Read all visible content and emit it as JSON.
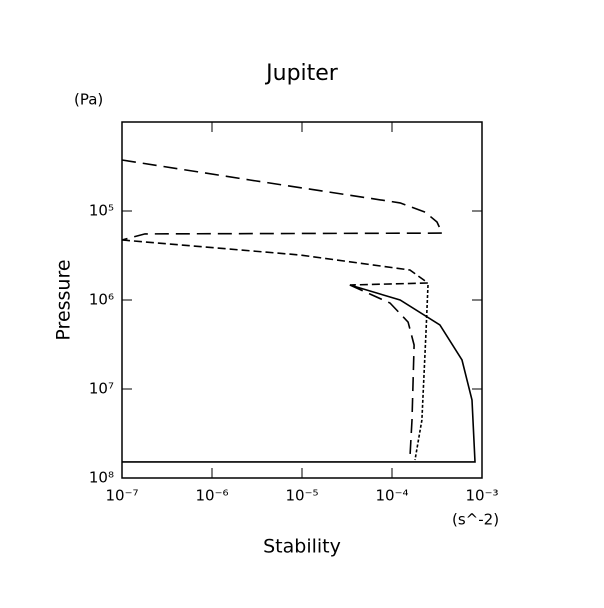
{
  "chart_data": {
    "type": "line",
    "title": "Jupiter",
    "x_label": "Stability",
    "x_unit": "(s^-2)",
    "y_label": "Pressure",
    "y_unit": "(Pa)",
    "xscale": "log",
    "yscale": "log",
    "xlim": [
      1e-07,
      0.001
    ],
    "ylim": [
      100000000.0,
      10000.0
    ],
    "xticks": [
      {
        "value": 1e-07,
        "label": "10⁻⁷"
      },
      {
        "value": 1e-06,
        "label": "10⁻⁶"
      },
      {
        "value": 1e-05,
        "label": "10⁻⁵"
      },
      {
        "value": 0.0001,
        "label": "10⁻⁴"
      },
      {
        "value": 0.001,
        "label": "10⁻³"
      }
    ],
    "yticks": [
      {
        "value": 100000.0,
        "label": "10⁵"
      },
      {
        "value": 1000000.0,
        "label": "10⁶"
      },
      {
        "value": 10000000.0,
        "label": "10⁷"
      },
      {
        "value": 100000000.0,
        "label": "10⁸"
      }
    ],
    "series": [
      {
        "color": "#000000",
        "dash": "14,7",
        "x": [
          1e-07,
          2.64e-06,
          0.000123,
          0.000233,
          0.000316,
          0.00036,
          1.8e-07,
          1e-07
        ],
        "values": [
          26700.0,
          44900.0,
          81000.0,
          103000.0,
          133000.0,
          177000.0,
          181000.0,
          212000.0
        ]
      },
      {
        "color": "#000000",
        "dash": "8,4",
        "x": [
          1e-07,
          9.5e-06,
          0.000158,
          0.000251,
          3.41e-05
        ],
        "values": [
          212000.0,
          312000.0,
          460000.0,
          644000.0,
          678000.0
        ]
      },
      {
        "color": "#000000",
        "dash": "3,2",
        "x": [
          0.000251,
          0.000239,
          0.000215,
          0.00018
        ],
        "values": [
          678000.0,
          2170000.0,
          22300000.0,
          62800000.0
        ]
      },
      {
        "color": "#000000",
        "dash": "14,7",
        "x": [
          3.41e-05,
          9.5e-05,
          0.000151,
          0.000176,
          0.000167,
          0.000158
        ],
        "values": [
          678000.0,
          1080000.0,
          1770000.0,
          3200000.0,
          22300000.0,
          59600000.0
        ]
      },
      {
        "color": "#000000",
        "dash": "none",
        "x": [
          3.41e-05,
          0.000123,
          0.000341,
          0.0006,
          0.000774,
          0.000836,
          1e-07
        ],
        "values": [
          678000.0,
          1000000.0,
          1910000.0,
          4720000.0,
          13300000.0,
          66000000.0,
          66000000.0
        ]
      }
    ]
  }
}
